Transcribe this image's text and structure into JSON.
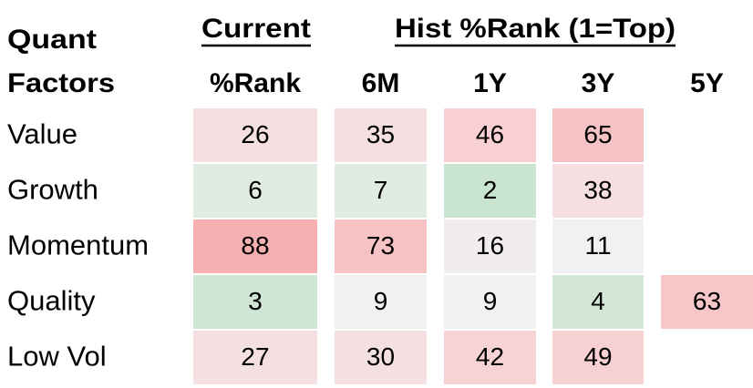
{
  "header": {
    "row1": [
      "Quant",
      "Current",
      "Hist %Rank (1=Top)"
    ],
    "row2": [
      "Factors",
      "%Rank",
      "6M",
      "1Y",
      "3Y",
      "5Y"
    ]
  },
  "table": {
    "rows": [
      {
        "label": "Value",
        "values": [
          26,
          35,
          46,
          65,
          null
        ],
        "colors": [
          "#f5dfe0",
          "#f5dfe0",
          "#f8d0d1",
          "#f7c2c3",
          null
        ]
      },
      {
        "label": "Growth",
        "values": [
          6,
          7,
          2,
          38,
          null
        ],
        "colors": [
          "#e0ece2",
          "#e0ece2",
          "#c9e4cf",
          "#f5dfe0",
          null
        ]
      },
      {
        "label": "Momentum",
        "values": [
          88,
          73,
          16,
          11,
          null
        ],
        "colors": [
          "#f6b0b1",
          "#f7c2c3",
          "#f2eded",
          "#f2f0f0",
          null
        ]
      },
      {
        "label": "Quality",
        "values": [
          3,
          9,
          9,
          4,
          63
        ],
        "colors": [
          "#cfe6d4",
          "#f1f1f1",
          "#f1f1f1",
          "#d2e7d6",
          "#f7c6c7"
        ]
      },
      {
        "label": "Low Vol",
        "values": [
          27,
          30,
          42,
          49,
          null
        ],
        "colors": [
          "#f5e0e1",
          "#f5e0e1",
          "#f7d3d4",
          "#f7d0d1",
          null
        ]
      }
    ]
  }
}
